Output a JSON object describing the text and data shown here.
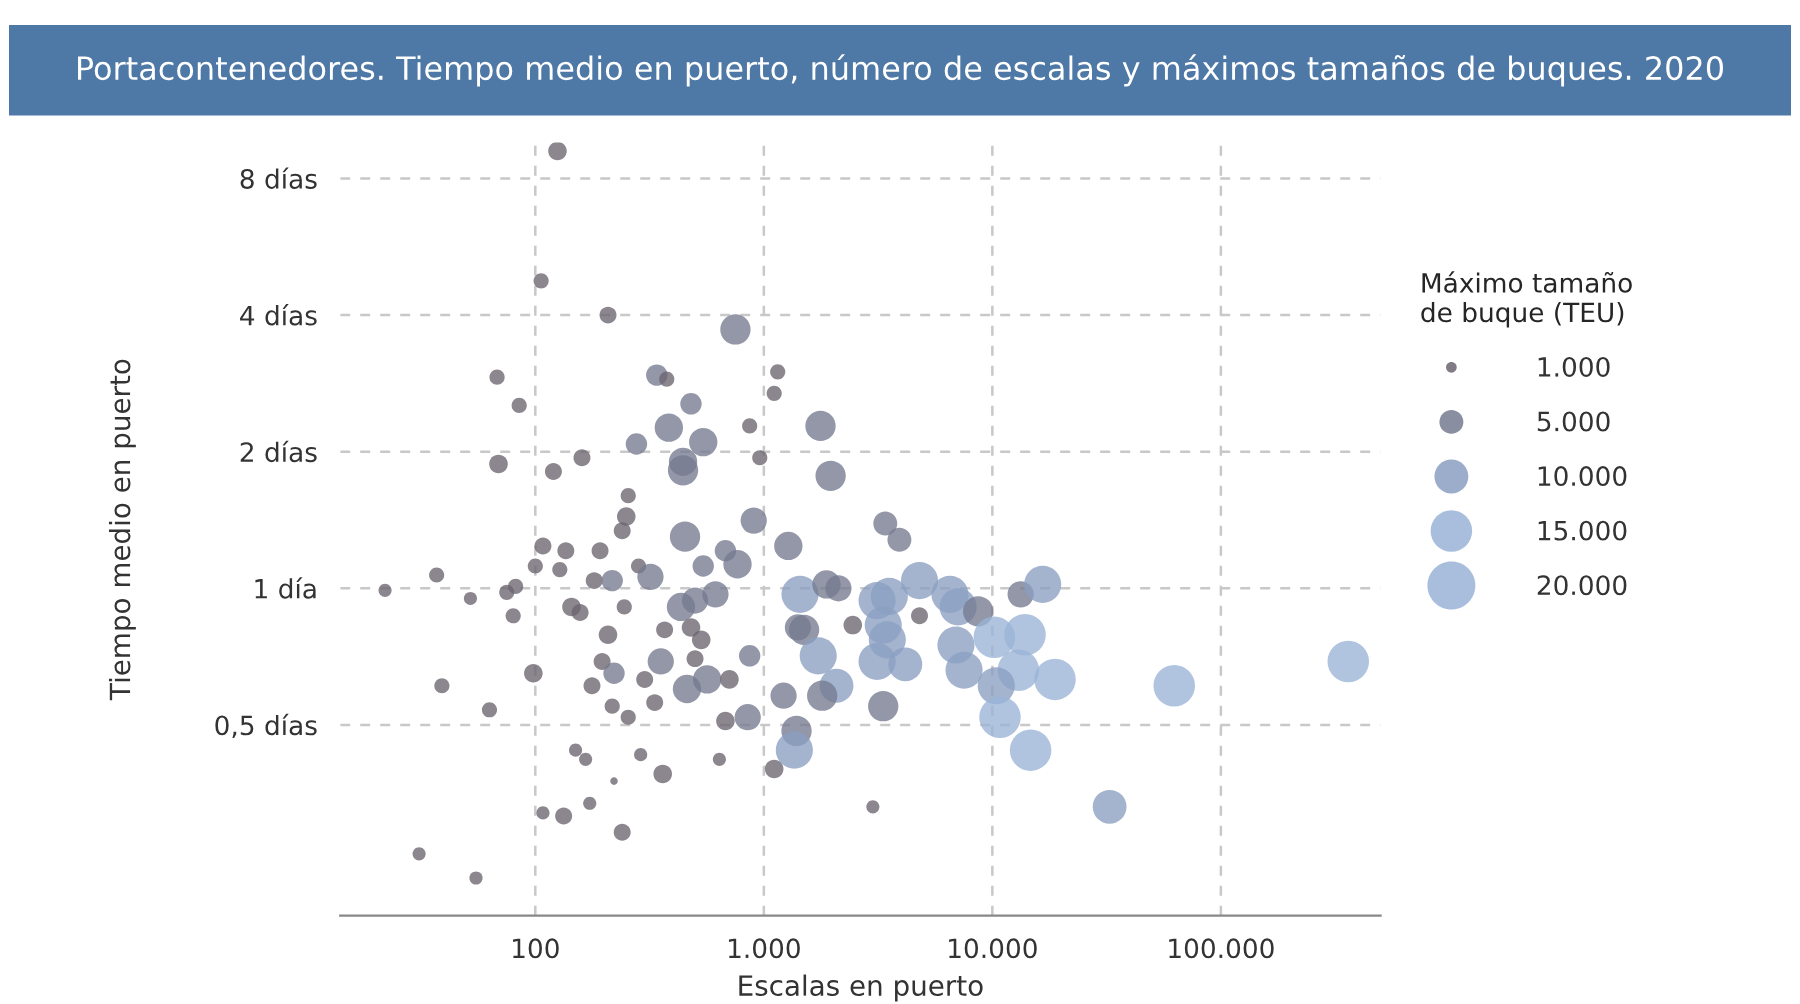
{
  "chart_data": {
    "type": "bubble",
    "title": "Portacontenedores. Tiempo medio en puerto, número de escalas y máximos tamaños de buques. 2020",
    "xlabel": "Escalas en puerto",
    "ylabel": "Tiempo medio en puerto",
    "legend_title": "Máximo tamaño\nde buque (TEU)",
    "log": "xy",
    "grid": true,
    "xlim": [
      14,
      500000
    ],
    "ylim": [
      0.19,
      9.6
    ],
    "xticks": [
      100,
      {
        "value": 1000,
        "label": "1.000"
      },
      {
        "value": 10000,
        "label": "10.000"
      },
      {
        "value": 100000,
        "label": "100.000"
      }
    ],
    "yticks": [
      {
        "value": 0.5,
        "label": "0,5 días"
      },
      {
        "value": 1,
        "label": "1 día"
      },
      {
        "value": 2,
        "label": "2 días"
      },
      {
        "value": 4,
        "label": "4 días"
      },
      {
        "value": 8,
        "label": "8 días"
      }
    ],
    "size_legend": [
      {
        "value": 1000,
        "label": "1.000"
      },
      {
        "value": 5000,
        "label": "5.000"
      },
      {
        "value": 10000,
        "label": "10.000"
      },
      {
        "value": 15000,
        "label": "15.000"
      },
      {
        "value": 20000,
        "label": "20.000"
      }
    ],
    "x": [
      125,
      106,
      208,
      751,
      68,
      85,
      340,
      376,
      480,
      1150,
      1110,
      384,
      543,
      443,
      443,
      277,
      69,
      120,
      160,
      867,
      960,
      255,
      250,
      240,
      452,
      903,
      136,
      108,
      100,
      128,
      192,
      283,
      319,
      543,
      679,
      767,
      37,
      22,
      52,
      75,
      82,
      80,
      181,
      217,
      144,
      157,
      245,
      434,
      500,
      614,
      368,
      208,
      480,
      532,
      500,
      196,
      221,
      354,
      98,
      39,
      63,
      177,
      301,
      217,
      255,
      333,
      461,
      565,
      707,
      867,
      679,
      850,
      150,
      166,
      289,
      361,
      639,
      221,
      108,
      133,
      173,
      240,
      31,
      55,
      1110,
      3000,
      1770,
      1960,
      3400,
      3920,
      1280,
      1440,
      1880,
      2120,
      3130,
      3540,
      4800,
      6520,
      7080,
      8670,
      13300,
      16600,
      1410,
      2450,
      4800,
      1500,
      3470,
      3330,
      1730,
      3130,
      4160,
      6930,
      10200,
      13900,
      7520,
      13000,
      18800,
      2080,
      1800,
      1220,
      3330,
      10400,
      10800,
      1390,
      1360,
      14700,
      32600,
      62500,
      361000
    ],
    "values": [
      9.2,
      4.76,
      4.0,
      3.72,
      2.92,
      2.53,
      2.95,
      2.89,
      2.55,
      3.0,
      2.69,
      2.26,
      2.1,
      1.9,
      1.82,
      2.08,
      1.88,
      1.81,
      1.94,
      2.28,
      1.94,
      1.6,
      1.44,
      1.34,
      1.3,
      1.41,
      1.21,
      1.24,
      1.12,
      1.1,
      1.21,
      1.12,
      1.06,
      1.12,
      1.21,
      1.13,
      1.07,
      0.99,
      0.95,
      0.98,
      1.01,
      0.87,
      1.04,
      1.04,
      0.91,
      0.885,
      0.91,
      0.91,
      0.94,
      0.97,
      0.81,
      0.79,
      0.82,
      0.77,
      0.7,
      0.69,
      0.65,
      0.69,
      0.65,
      0.61,
      0.54,
      0.61,
      0.63,
      0.55,
      0.52,
      0.56,
      0.6,
      0.63,
      0.63,
      0.71,
      0.51,
      0.52,
      0.44,
      0.42,
      0.43,
      0.39,
      0.42,
      0.376,
      0.32,
      0.315,
      0.336,
      0.29,
      0.26,
      0.23,
      0.4,
      0.33,
      2.28,
      1.77,
      1.39,
      1.28,
      1.24,
      0.97,
      1.02,
      1.0,
      0.94,
      0.96,
      1.04,
      0.97,
      0.91,
      0.89,
      0.97,
      1.02,
      0.82,
      0.83,
      0.87,
      0.81,
      0.77,
      0.83,
      0.71,
      0.69,
      0.68,
      0.75,
      0.78,
      0.79,
      0.66,
      0.66,
      0.63,
      0.61,
      0.58,
      0.58,
      0.55,
      0.61,
      0.52,
      0.485,
      0.44,
      0.44,
      0.33,
      0.61,
      0.69
    ],
    "sizes": [
      3000,
      2000,
      2500,
      8000,
      2000,
      2000,
      4000,
      2000,
      4000,
      2000,
      2000,
      7000,
      7000,
      7000,
      8000,
      4000,
      3000,
      2500,
      2500,
      2000,
      2000,
      2000,
      3000,
      2500,
      8000,
      6000,
      2500,
      2500,
      2000,
      2000,
      2500,
      2000,
      6000,
      4000,
      4000,
      7000,
      2000,
      1500,
      1500,
      2000,
      2000,
      2000,
      2500,
      4000,
      3000,
      2500,
      2000,
      7000,
      6000,
      6000,
      2500,
      3000,
      3000,
      3000,
      2500,
      2500,
      4000,
      6000,
      3000,
      2000,
      2000,
      2500,
      2500,
      2000,
      2000,
      2500,
      7000,
      7000,
      3000,
      4000,
      3000,
      6000,
      1500,
      1500,
      1500,
      3000,
      1500,
      500,
      1500,
      2500,
      1500,
      2500,
      1500,
      1500,
      3000,
      1500,
      8000,
      8000,
      5000,
      5000,
      7000,
      12000,
      7000,
      6000,
      12000,
      12000,
      12000,
      12000,
      12000,
      8000,
      6000,
      12000,
      6000,
      3000,
      2500,
      8000,
      12000,
      12000,
      12000,
      12000,
      10000,
      12000,
      15000,
      15000,
      12000,
      15000,
      15000,
      10000,
      8000,
      6000,
      8000,
      12000,
      15000,
      8000,
      12000,
      15000,
      10000,
      15000,
      15000
    ],
    "colors": [
      "#6b6470",
      "#6b6470",
      "#6b6470",
      "#747a90",
      "#6b6470",
      "#6b6470",
      "#747a90",
      "#6b6470",
      "#747a90",
      "#6b6470",
      "#6b6470",
      "#747a90",
      "#747a90",
      "#747a90",
      "#747a90",
      "#747a90",
      "#6b6470",
      "#6b6470",
      "#6b6470",
      "#6b6470",
      "#6b6470",
      "#6b6470",
      "#6b6470",
      "#6b6470",
      "#747a90",
      "#747a90",
      "#6b6470",
      "#6b6470",
      "#6b6470",
      "#6b6470",
      "#6b6470",
      "#6b6470",
      "#747a90",
      "#747a90",
      "#747a90",
      "#747a90",
      "#6b6470",
      "#6b6470",
      "#6b6470",
      "#6b6470",
      "#6b6470",
      "#6b6470",
      "#6b6470",
      "#747a90",
      "#6b6470",
      "#6b6470",
      "#6b6470",
      "#747a90",
      "#747a90",
      "#747a90",
      "#6b6470",
      "#6b6470",
      "#6b6470",
      "#6b6470",
      "#6b6470",
      "#6b6470",
      "#747a90",
      "#747a90",
      "#6b6470",
      "#6b6470",
      "#6b6470",
      "#6b6470",
      "#6b6470",
      "#6b6470",
      "#6b6470",
      "#6b6470",
      "#747a90",
      "#747a90",
      "#6b6470",
      "#747a90",
      "#6b6470",
      "#747a90",
      "#6b6470",
      "#6b6470",
      "#6b6470",
      "#6b6470",
      "#6b6470",
      "#6b6470",
      "#6b6470",
      "#6b6470",
      "#6b6470",
      "#6b6470",
      "#6b6470",
      "#6b6470",
      "#6b6470",
      "#6b6470",
      "#747a90",
      "#747a90",
      "#747a90",
      "#747a90",
      "#747a90",
      "#8a9fc2",
      "#747a90",
      "#747a90",
      "#8a9fc2",
      "#8a9fc2",
      "#8a9fc2",
      "#8a9fc2",
      "#8a9fc2",
      "#747a90",
      "#747a90",
      "#8a9fc2",
      "#747a90",
      "#6b6470",
      "#6b6470",
      "#747a90",
      "#8a9fc2",
      "#8a9fc2",
      "#8a9fc2",
      "#8a9fc2",
      "#8a9fc2",
      "#8a9fc2",
      "#9ab3d6",
      "#9ab3d6",
      "#8a9fc2",
      "#9ab3d6",
      "#9ab3d6",
      "#8a9fc2",
      "#747a90",
      "#747a90",
      "#747a90",
      "#8a9fc2",
      "#9ab3d6",
      "#747a90",
      "#8a9fc2",
      "#9ab3d6",
      "#8a9fc2",
      "#9ab3d6",
      "#9ab3d6"
    ]
  }
}
